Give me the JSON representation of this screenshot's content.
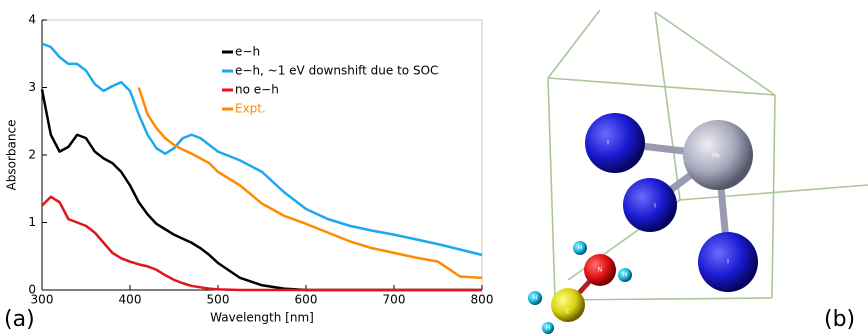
{
  "chart_data": {
    "type": "line",
    "xlabel": "Wavelength [nm]",
    "ylabel": "Absorbance",
    "x": [
      300,
      310,
      320,
      330,
      340,
      350,
      360,
      370,
      380,
      390,
      400,
      410,
      420,
      430,
      440,
      450,
      460,
      470,
      480,
      490,
      500,
      525,
      550,
      575,
      600,
      625,
      650,
      675,
      700,
      725,
      750,
      775,
      800
    ],
    "series": [
      {
        "name": "e−h",
        "color": "#000000",
        "values": [
          2.97,
          2.3,
          2.05,
          2.12,
          2.3,
          2.25,
          2.05,
          1.95,
          1.88,
          1.75,
          1.55,
          1.3,
          1.12,
          0.98,
          0.9,
          0.82,
          0.76,
          0.7,
          0.62,
          0.52,
          0.4,
          0.18,
          0.07,
          0.02,
          0,
          0,
          0,
          0,
          0,
          0,
          0,
          0,
          0
        ]
      },
      {
        "name": "e−h, ~1 eV downshift due to SOC",
        "color": "#1ea7f0",
        "values": [
          3.65,
          3.6,
          3.45,
          3.35,
          3.35,
          3.25,
          3.05,
          2.95,
          3.02,
          3.08,
          2.95,
          2.6,
          2.3,
          2.1,
          2.02,
          2.1,
          2.25,
          2.3,
          2.25,
          2.15,
          2.05,
          1.92,
          1.75,
          1.45,
          1.2,
          1.05,
          0.95,
          0.88,
          0.82,
          0.75,
          0.68,
          0.6,
          0.52
        ]
      },
      {
        "name": "no e−h",
        "color": "#e0161b",
        "values": [
          1.25,
          1.38,
          1.3,
          1.05,
          1.0,
          0.95,
          0.85,
          0.7,
          0.55,
          0.47,
          0.42,
          0.38,
          0.35,
          0.3,
          0.22,
          0.15,
          0.1,
          0.06,
          0.04,
          0.02,
          0.01,
          0,
          0,
          0,
          0,
          0,
          0,
          0,
          0,
          0,
          0,
          0,
          0
        ]
      },
      {
        "name": "Expt.",
        "color": "#ff8c00",
        "values": [
          null,
          null,
          null,
          null,
          null,
          null,
          null,
          null,
          null,
          null,
          null,
          3.0,
          2.6,
          2.4,
          2.25,
          2.15,
          2.08,
          2.02,
          1.95,
          1.88,
          1.75,
          1.55,
          1.28,
          1.1,
          0.98,
          0.85,
          0.72,
          0.62,
          0.55,
          0.48,
          0.42,
          0.2,
          0.18
        ]
      }
    ],
    "xlim": [
      300,
      800
    ],
    "xticks": [
      300,
      400,
      500,
      600,
      700,
      800
    ],
    "ylim": [
      0,
      4
    ],
    "yticks": [
      0,
      1,
      2,
      3,
      4
    ],
    "legend": "upper right",
    "grid": false
  },
  "panel_labels": [
    "(a)",
    "(b)"
  ],
  "structure": {
    "atom_labels": [
      "I",
      "Pb",
      "I",
      "I",
      "N",
      "C",
      "H",
      "H",
      "H",
      "H"
    ]
  }
}
